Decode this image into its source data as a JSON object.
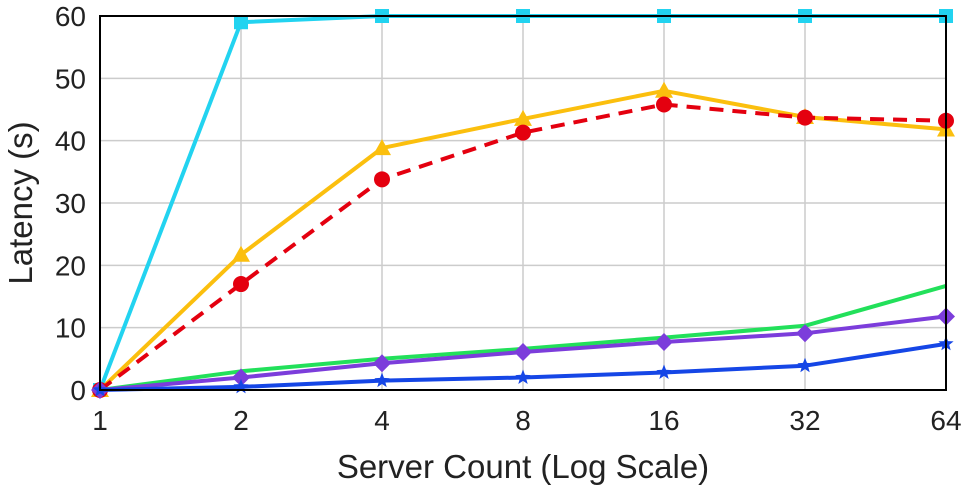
{
  "chart_data": {
    "type": "line",
    "title": "",
    "xlabel": "Server Count (Log Scale)",
    "ylabel": "Latency (s)",
    "x_scale": "log2",
    "x": [
      1,
      2,
      4,
      8,
      16,
      32,
      64
    ],
    "xticklabels": [
      "1",
      "2",
      "4",
      "8",
      "16",
      "32",
      "64"
    ],
    "ylim": [
      0,
      60
    ],
    "yticks": [
      0,
      10,
      20,
      30,
      40,
      50,
      60
    ],
    "grid": true,
    "series": [
      {
        "color": "#22d3f0",
        "marker": "square",
        "dash": "solid",
        "values": [
          0,
          59,
          60,
          60,
          60,
          60,
          60
        ]
      },
      {
        "color": "#fbbf0e",
        "marker": "triangle",
        "dash": "solid",
        "values": [
          0,
          21.7,
          38.8,
          43.5,
          48,
          43.8,
          41.8
        ]
      },
      {
        "color": "#e4000f",
        "marker": "circle",
        "dash": "dashed",
        "values": [
          0,
          17,
          33.8,
          41.3,
          45.8,
          43.7,
          43.2
        ]
      },
      {
        "color": "#22e05a",
        "marker": "none",
        "dash": "solid",
        "values": [
          0,
          3,
          5,
          6.6,
          8.4,
          10.3,
          16.7
        ]
      },
      {
        "color": "#7c3ddb",
        "marker": "diamond",
        "dash": "solid",
        "values": [
          0,
          2,
          4.3,
          6.1,
          7.7,
          9.1,
          11.8
        ]
      },
      {
        "color": "#1546e6",
        "marker": "star",
        "dash": "solid",
        "values": [
          0,
          0.5,
          1.5,
          2,
          2.8,
          3.9,
          7.4
        ]
      }
    ]
  }
}
